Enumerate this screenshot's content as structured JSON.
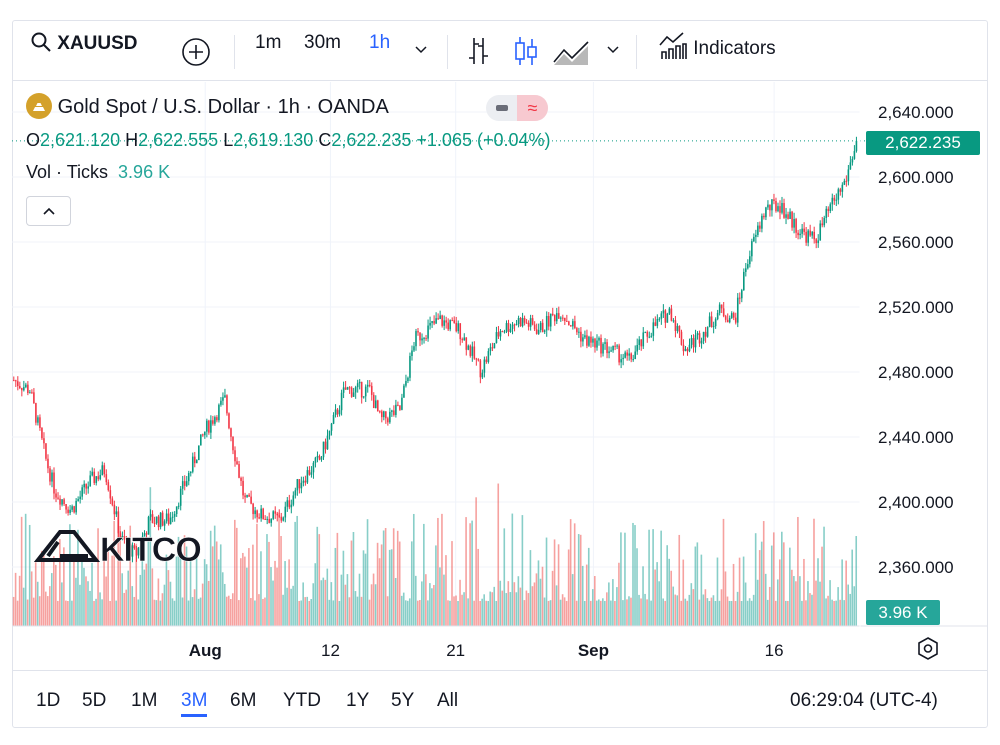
{
  "toolbar": {
    "symbol": "XAUUSD",
    "intervals": [
      "1m",
      "30m",
      "1h"
    ],
    "active_interval": "1h",
    "indicators_label": "Indicators"
  },
  "legend": {
    "title": "Gold Spot / U.S. Dollar · 1h · OANDA",
    "o_label": "O",
    "o": "2,621.120",
    "h_label": "H",
    "h": "2,622.555",
    "l_label": "L",
    "l": "2,619.130",
    "c_label": "C",
    "c": "2,622.235",
    "change": "+1.065 (+0.04%)",
    "vol_label": "Vol · Ticks",
    "vol": "3.96 K"
  },
  "price_label": "2,622.235",
  "volume_label": "3.96 K",
  "logo": "KITCO",
  "ranges": [
    "1D",
    "5D",
    "1M",
    "3M",
    "6M",
    "YTD",
    "1Y",
    "5Y",
    "All"
  ],
  "active_range": "3M",
  "clock": "06:29:04 (UTC-4)",
  "colors": {
    "up": "#089981",
    "down": "#f23645",
    "accent": "#2962ff",
    "vol_up": "#26a69a",
    "vol_down": "#ef5350"
  },
  "chart_data": {
    "type": "candlestick",
    "title": "Gold Spot / U.S. Dollar · 1h · OANDA",
    "x_unit": "trading days from Aug 1",
    "xlim": [
      -10.8,
      36.6
    ],
    "ylim": [
      2340,
      2650
    ],
    "yticks": [
      2640,
      2600,
      2560,
      2520,
      2480,
      2440,
      2400,
      2360
    ],
    "ytick_labels": [
      "2,640.000",
      "2,600.000",
      "2,560.000",
      "2,520.000",
      "2,480.000",
      "2,440.000",
      "2,400.000",
      "2,360.000"
    ],
    "xticks": [
      {
        "x": 0,
        "label": "Aug",
        "bold": true
      },
      {
        "x": 7,
        "label": "12"
      },
      {
        "x": 14,
        "label": "21"
      },
      {
        "x": 21.7,
        "label": "Sep",
        "bold": true
      },
      {
        "x": 31.8,
        "label": "16"
      }
    ],
    "close_path": [
      [
        -10.7,
        2475
      ],
      [
        -9.8,
        2469
      ],
      [
        -8.9,
        2426
      ],
      [
        -8.4,
        2407
      ],
      [
        -7.5,
        2395
      ],
      [
        -6.4,
        2413
      ],
      [
        -5.6,
        2420
      ],
      [
        -4.7,
        2377
      ],
      [
        -3.9,
        2367
      ],
      [
        -3.1,
        2389
      ],
      [
        -2.0,
        2389
      ],
      [
        -0.8,
        2420
      ],
      [
        0,
        2444
      ],
      [
        1.1,
        2463
      ],
      [
        1.5,
        2438
      ],
      [
        2.2,
        2401
      ],
      [
        3.1,
        2392
      ],
      [
        4.2,
        2389
      ],
      [
        5.3,
        2413
      ],
      [
        6.4,
        2426
      ],
      [
        7.8,
        2469
      ],
      [
        9.2,
        2469
      ],
      [
        9.8,
        2450
      ],
      [
        10.9,
        2457
      ],
      [
        11.7,
        2500
      ],
      [
        13.1,
        2512
      ],
      [
        14.2,
        2506
      ],
      [
        15.4,
        2481
      ],
      [
        16.5,
        2506
      ],
      [
        17.6,
        2512
      ],
      [
        18.7,
        2506
      ],
      [
        19.8,
        2518
      ],
      [
        21.2,
        2500
      ],
      [
        22.6,
        2494
      ],
      [
        23.7,
        2487
      ],
      [
        24.9,
        2506
      ],
      [
        26.0,
        2518
      ],
      [
        26.8,
        2494
      ],
      [
        27.7,
        2503
      ],
      [
        28.8,
        2518
      ],
      [
        29.6,
        2512
      ],
      [
        30.3,
        2549
      ],
      [
        31.3,
        2580
      ],
      [
        32.1,
        2583
      ],
      [
        33.2,
        2567
      ],
      [
        34.1,
        2561
      ],
      [
        34.9,
        2580
      ],
      [
        35.8,
        2598
      ],
      [
        36.4,
        2622.235
      ]
    ],
    "last_price": 2622.235,
    "last_volume": "3.96K"
  }
}
